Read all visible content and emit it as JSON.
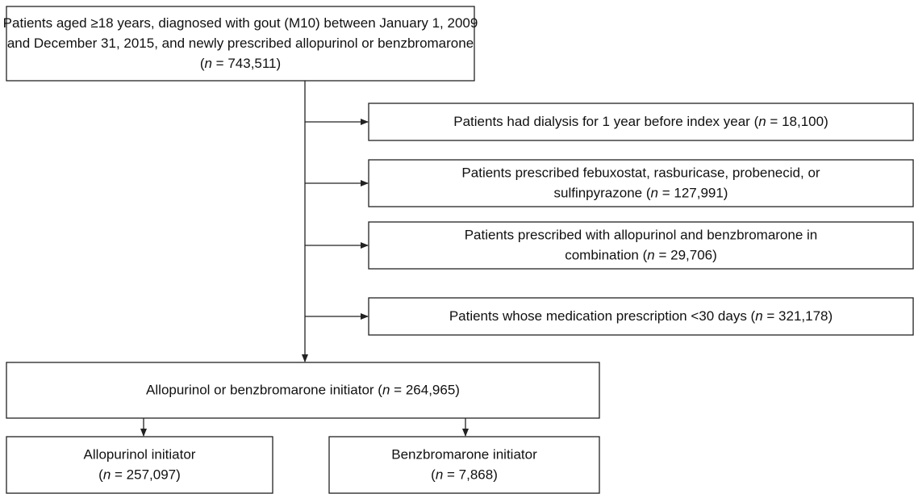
{
  "nodes": [
    {
      "lines": [
        [
          {
            "text": "Patients aged ≥18 years, diagnosed with gout (M10) between January 1, 2009"
          }
        ],
        [
          {
            "text": "and December 31, 2015, and newly prescribed allopurinol or benzbromarone"
          }
        ],
        [
          {
            "text": "("
          },
          {
            "text": "n",
            "italic": true
          },
          {
            "text": " = 743,511)"
          }
        ]
      ]
    },
    {
      "lines": [
        [
          {
            "text": "Patients had dialysis for 1 year before index year ("
          },
          {
            "text": "n",
            "italic": true
          },
          {
            "text": " = 18,100)"
          }
        ]
      ]
    },
    {
      "lines": [
        [
          {
            "text": "Patients prescribed febuxostat, rasburicase, probenecid, or"
          }
        ],
        [
          {
            "text": "sulfinpyrazone ("
          },
          {
            "text": "n",
            "italic": true
          },
          {
            "text": " = 127,991)"
          }
        ]
      ]
    },
    {
      "lines": [
        [
          {
            "text": "Patients prescribed with allopurinol and benzbromarone in"
          }
        ],
        [
          {
            "text": "combination ("
          },
          {
            "text": "n",
            "italic": true
          },
          {
            "text": " = 29,706)"
          }
        ]
      ]
    },
    {
      "lines": [
        [
          {
            "text": "Patients whose medication prescription <30 days ("
          },
          {
            "text": "n",
            "italic": true
          },
          {
            "text": " = 321,178)"
          }
        ]
      ]
    },
    {
      "lines": [
        [
          {
            "text": "Allopurinol or benzbromarone initiator ("
          },
          {
            "text": "n",
            "italic": true
          },
          {
            "text": " = 264,965)"
          }
        ]
      ]
    },
    {
      "lines": [
        [
          {
            "text": "Allopurinol initiator"
          }
        ],
        [
          {
            "text": "("
          },
          {
            "text": "n",
            "italic": true
          },
          {
            "text": " = 257,097)"
          }
        ]
      ]
    },
    {
      "lines": [
        [
          {
            "text": "Benzbromarone initiator"
          }
        ],
        [
          {
            "text": "("
          },
          {
            "text": "n",
            "italic": true
          },
          {
            "text": " = 7,868)"
          }
        ]
      ]
    }
  ]
}
